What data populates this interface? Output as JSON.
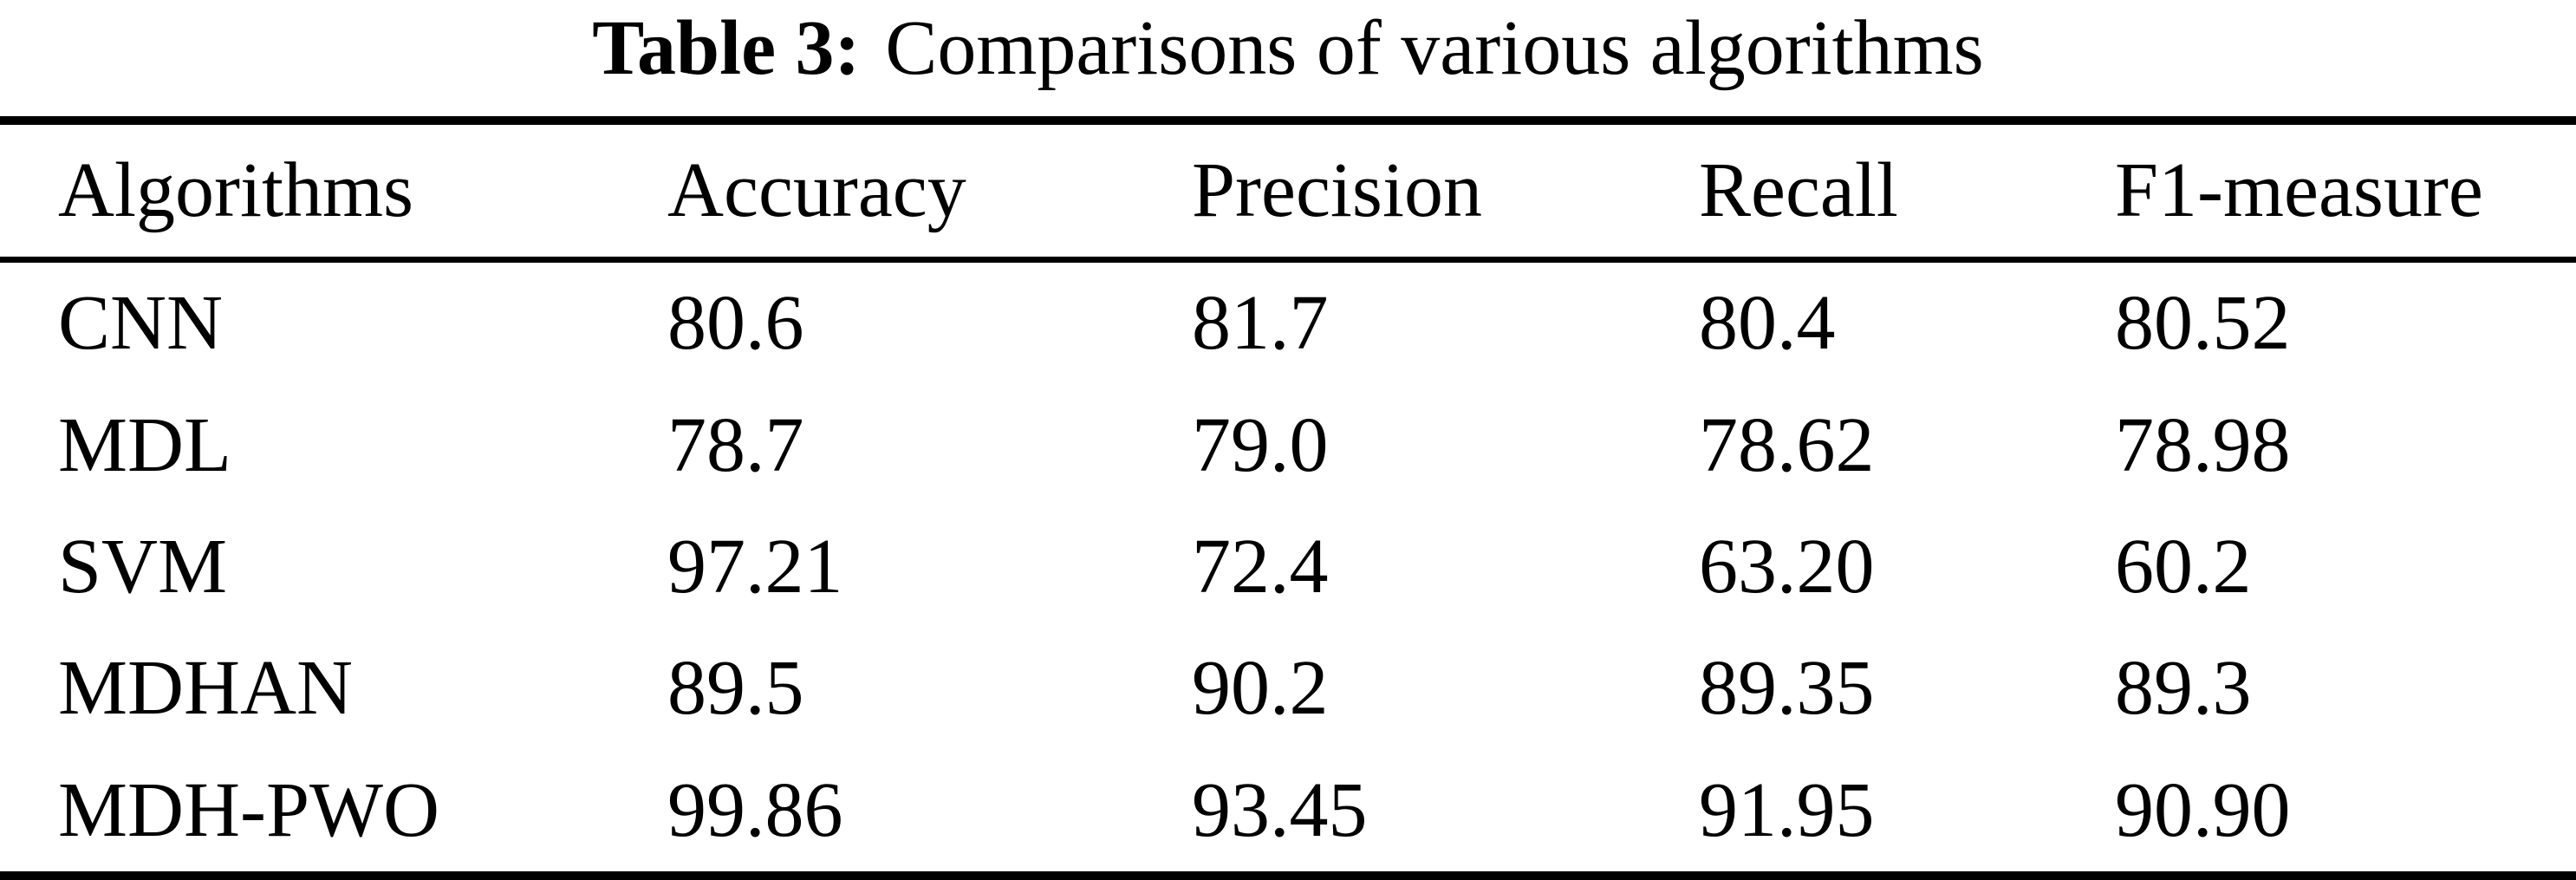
{
  "caption": {
    "label": "Table 3:",
    "text": "Comparisons of various algorithms"
  },
  "table": {
    "columns": [
      "Algorithms",
      "Accuracy",
      "Precision",
      "Recall",
      "F1-measure"
    ],
    "rows": [
      [
        "CNN",
        "80.6",
        "81.7",
        "80.4",
        "80.52"
      ],
      [
        "MDL",
        "78.7",
        "79.0",
        "78.62",
        "78.98"
      ],
      [
        "SVM",
        "97.21",
        "72.4",
        "63.20",
        "60.2"
      ],
      [
        "MDHAN",
        "89.5",
        "90.2",
        "89.35",
        "89.3"
      ],
      [
        "MDH-PWO",
        "99.86",
        "93.45",
        "91.95",
        "90.90"
      ]
    ]
  },
  "colors": {
    "text": "#000000",
    "background": "#ffffff",
    "rule": "#000000"
  }
}
